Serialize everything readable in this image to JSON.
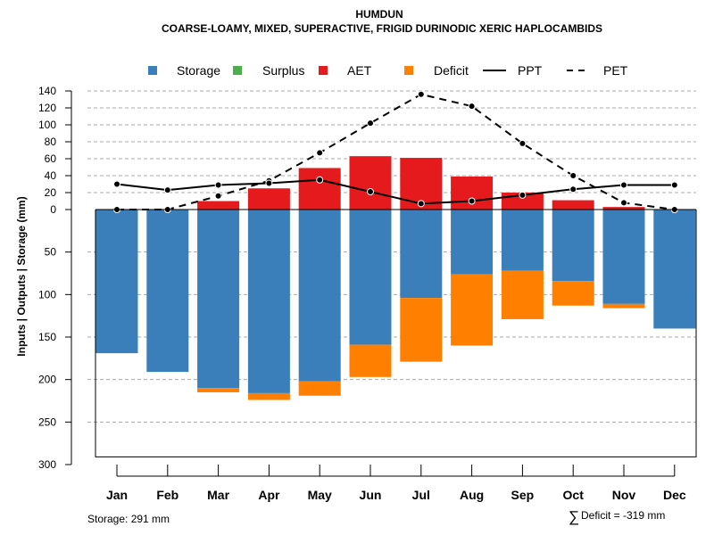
{
  "chart_data": {
    "type": "bar",
    "title": "HUMDUN",
    "subtitle": "COARSE-LOAMY, MIXED, SUPERACTIVE, FRIGID DURINODIC XERIC HAPLOCAMBIDS",
    "ylabel": "Inputs | Outputs | Storage      (mm)",
    "xlabel": "",
    "categories": [
      "Jan",
      "Feb",
      "Mar",
      "Apr",
      "May",
      "Jun",
      "Jul",
      "Aug",
      "Sep",
      "Oct",
      "Nov",
      "Dec"
    ],
    "upper_axis": {
      "ylim": [
        0,
        140
      ],
      "ticks": [
        "0",
        "20",
        "40",
        "60",
        "80",
        "100",
        "120",
        "140"
      ]
    },
    "lower_axis": {
      "ylim": [
        0,
        300
      ],
      "ticks": [
        "0",
        "50",
        "100",
        "150",
        "200",
        "250",
        "300"
      ]
    },
    "legend": {
      "position": "top",
      "items": [
        {
          "label": "Storage",
          "kind": "box",
          "color": "#3B7FBA"
        },
        {
          "label": "Surplus",
          "kind": "box",
          "color": "#4CAF4C"
        },
        {
          "label": "AET",
          "kind": "box",
          "color": "#E41A1C"
        },
        {
          "label": "Deficit",
          "kind": "box",
          "color": "#FF8000"
        },
        {
          "label": "PPT",
          "kind": "solid-line",
          "color": "#000000"
        },
        {
          "label": "PET",
          "kind": "dashed-line",
          "color": "#000000"
        }
      ]
    },
    "series": [
      {
        "name": "AET",
        "color": "#E41A1C",
        "values": [
          0,
          0,
          10,
          25,
          49,
          63,
          61,
          39,
          20,
          11,
          3,
          0
        ]
      },
      {
        "name": "Storage",
        "color": "#3B7FBA",
        "values": [
          169,
          191,
          210,
          216,
          202,
          159,
          104,
          76,
          72,
          84,
          111,
          140
        ]
      },
      {
        "name": "Deficit",
        "color": "#FF8000",
        "values": [
          0,
          0,
          5,
          8,
          17,
          38,
          75,
          84,
          57,
          29,
          5,
          0
        ]
      },
      {
        "name": "Surplus",
        "color": "#4CAF4C",
        "values": [
          0,
          0,
          0,
          0,
          0,
          0,
          0,
          0,
          0,
          0,
          0,
          0
        ]
      },
      {
        "name": "PPT",
        "color": "#000000",
        "values": [
          30,
          23,
          29,
          31,
          35,
          21,
          7,
          10,
          17,
          24,
          29,
          29
        ]
      },
      {
        "name": "PET",
        "color": "#000000",
        "values": [
          0,
          0,
          16,
          34,
          67,
          102,
          136,
          122,
          78,
          40,
          8,
          0
        ]
      }
    ],
    "storage_capacity": 291,
    "grid": true
  },
  "footer": {
    "storage_text": "Storage: 291 mm",
    "deficit_symbol": "∑",
    "deficit_text": "Deficit = -319 mm"
  }
}
